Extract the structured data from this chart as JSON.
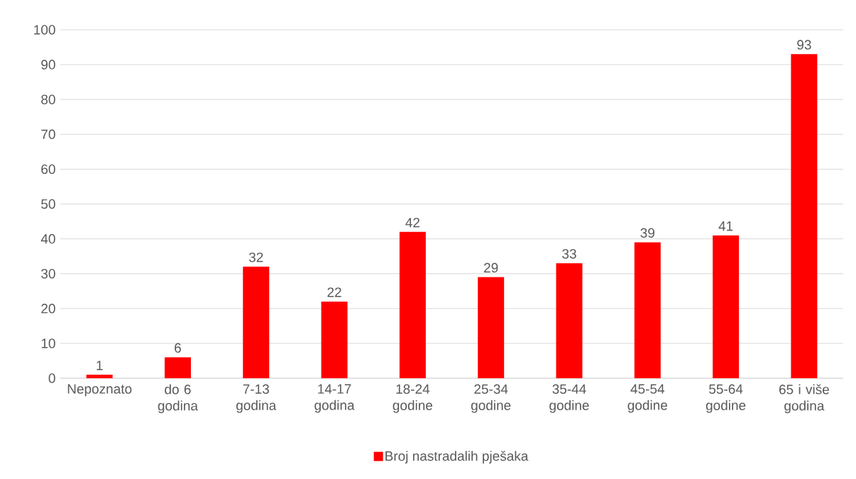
{
  "chart_data": {
    "type": "bar",
    "categories": [
      "Nepoznato",
      "do 6 godina",
      "7-13 godina",
      "14-17 godina",
      "18-24 godine",
      "25-34 godine",
      "35-44 godine",
      "45-54 godine",
      "55-64 godine",
      "65 i više godina"
    ],
    "series": [
      {
        "name": "Broj nastradalih pješaka",
        "color": "#ff0000",
        "values": [
          1,
          6,
          32,
          22,
          42,
          29,
          33,
          39,
          41,
          93
        ]
      }
    ],
    "ylim": [
      0,
      100
    ],
    "yticks": [
      0,
      10,
      20,
      30,
      40,
      50,
      60,
      70,
      80,
      90,
      100
    ],
    "grid": "y",
    "legend": "bottom",
    "data_labels": true
  }
}
